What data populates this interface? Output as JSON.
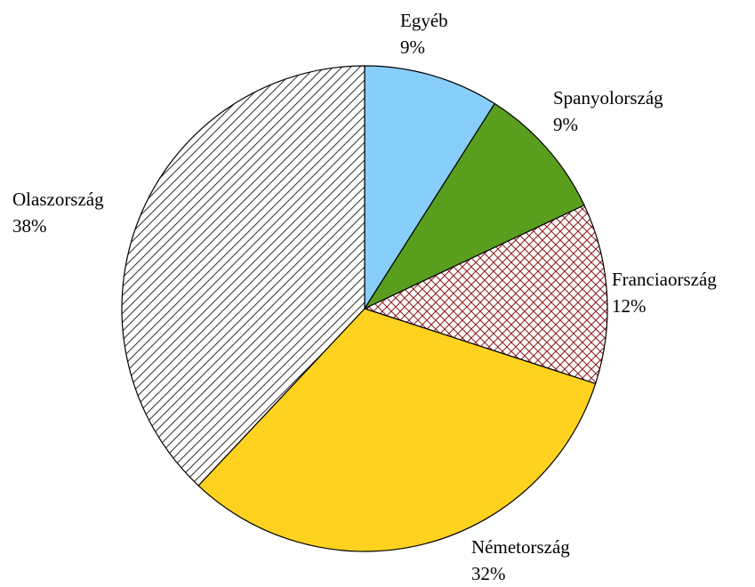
{
  "chart_data": {
    "type": "pie",
    "categories": [
      "Egyéb",
      "Spanyolország",
      "Franciaország",
      "Németország",
      "Olaszország"
    ],
    "values": [
      9,
      9,
      12,
      32,
      38
    ],
    "value_labels": [
      "9%",
      "9%",
      "12%",
      "32%",
      "38%"
    ],
    "colors": [
      "#87cefa",
      "#5a9e1e",
      "#8b1a1a",
      "#ffd21f",
      "#333333"
    ],
    "patterns": [
      null,
      null,
      "crosshatch",
      null,
      "diagonal"
    ]
  }
}
